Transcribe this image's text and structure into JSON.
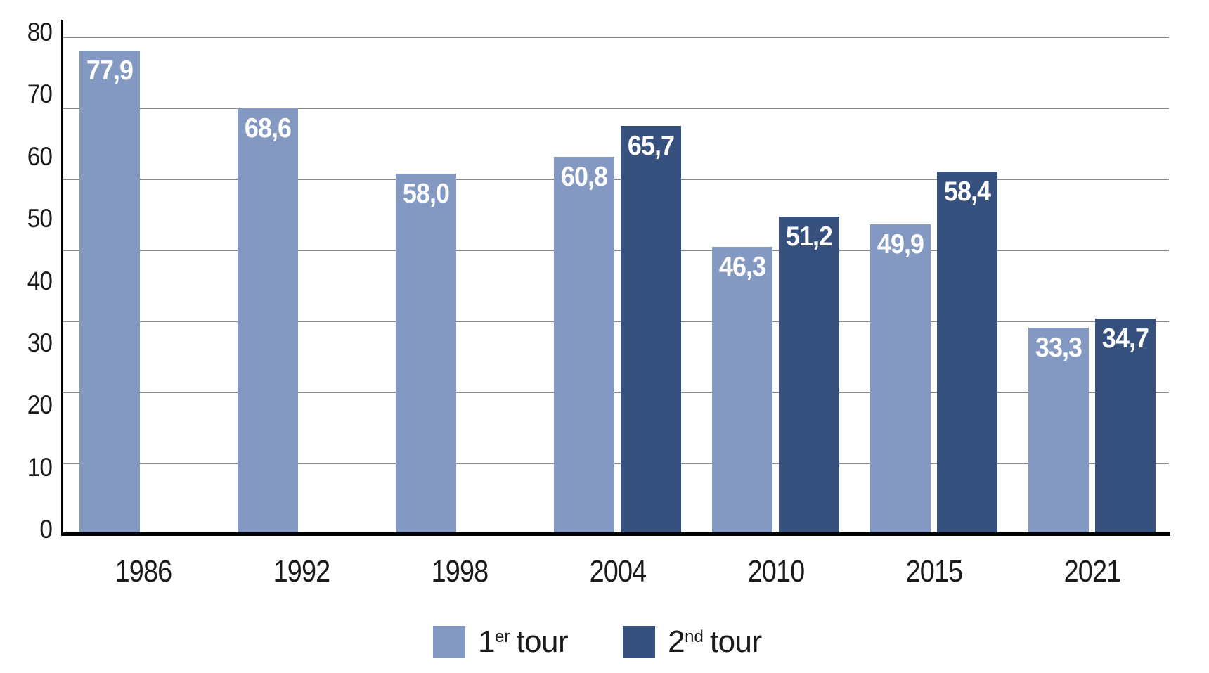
{
  "chart_data": {
    "type": "bar",
    "title": "",
    "xlabel": "",
    "ylabel": "",
    "categories": [
      "1986",
      "1992",
      "1998",
      "2004",
      "2010",
      "2015",
      "2021"
    ],
    "series": [
      {
        "name": "1er tour",
        "color": "#8499C2",
        "values": [
          77.9,
          68.6,
          58.0,
          60.8,
          46.3,
          49.9,
          33.3
        ],
        "labels": [
          "77,9",
          "68,6",
          "58,0",
          "60,8",
          "46,3",
          "49,9",
          "33,3"
        ]
      },
      {
        "name": "2nd tour",
        "color": "#37517F",
        "values": [
          null,
          null,
          null,
          65.7,
          51.2,
          58.4,
          34.7
        ],
        "labels": [
          null,
          null,
          null,
          "65,7",
          "51,2",
          "58,4",
          "34,7"
        ]
      }
    ],
    "ylim": [
      0,
      80
    ],
    "y_ticks": [
      "80",
      "70",
      "60",
      "50",
      "40",
      "30",
      "20",
      "10",
      "0"
    ],
    "grid": "horizontal",
    "gridline_count": 8,
    "legend_position": "bottom-center",
    "legend": [
      {
        "base": "1",
        "sup": "er",
        "rest": "tour",
        "color": "#8499C2"
      },
      {
        "base": "2",
        "sup": "nd",
        "rest": "tour",
        "color": "#37517F"
      }
    ],
    "colors": {
      "first_round": "#8499C2",
      "second_round": "#37517F",
      "gridline": "#8A8A8A",
      "axis": "#000000",
      "value_text": "#FFFFFF",
      "tick_text": "#1A1A1A",
      "background": "#FFFFFF"
    }
  }
}
